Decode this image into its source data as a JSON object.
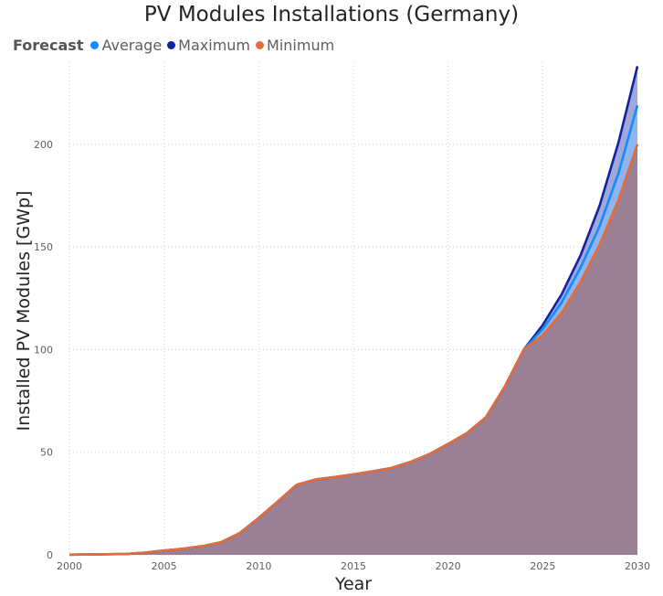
{
  "chart_data": {
    "type": "area",
    "title": "PV Modules Installations (Germany)",
    "xlabel": "Year",
    "ylabel": "Installed PV Modules [GWp]",
    "xlim": [
      2000,
      2030
    ],
    "ylim": [
      0,
      240
    ],
    "x_ticks": [
      2000,
      2005,
      2010,
      2015,
      2020,
      2025,
      2030
    ],
    "y_ticks": [
      0,
      50,
      100,
      150,
      200
    ],
    "grid": true,
    "legend": {
      "title": "Forecast",
      "position": "top-left",
      "items": [
        {
          "name": "Average",
          "color": "#118DFF"
        },
        {
          "name": "Maximum",
          "color": "#12239E"
        },
        {
          "name": "Minimum",
          "color": "#E66C37"
        }
      ]
    },
    "x": [
      2000,
      2001,
      2002,
      2003,
      2004,
      2005,
      2006,
      2007,
      2008,
      2009,
      2010,
      2011,
      2012,
      2013,
      2014,
      2015,
      2016,
      2017,
      2018,
      2019,
      2020,
      2021,
      2022,
      2023,
      2024,
      2025,
      2026,
      2027,
      2028,
      2029,
      2030
    ],
    "series": [
      {
        "name": "Maximum",
        "color": "#12239E",
        "fill": "#9FA8DA",
        "values": [
          0.1,
          0.2,
          0.3,
          0.4,
          1.1,
          2.1,
          3.0,
          4.2,
          6.1,
          10.6,
          18.0,
          25.9,
          34.1,
          36.7,
          37.9,
          39.2,
          40.7,
          42.3,
          45.2,
          49.0,
          54.0,
          59.3,
          67.0,
          82.0,
          100.0,
          112.0,
          127.0,
          146.0,
          170.0,
          201.0,
          238.0
        ]
      },
      {
        "name": "Average",
        "color": "#118DFF",
        "fill": "#8FB4F0",
        "values": [
          0.1,
          0.2,
          0.3,
          0.4,
          1.1,
          2.1,
          3.0,
          4.2,
          6.1,
          10.6,
          18.0,
          25.9,
          34.1,
          36.7,
          37.9,
          39.2,
          40.7,
          42.3,
          45.2,
          49.0,
          54.0,
          59.3,
          67.0,
          82.0,
          100.0,
          110.0,
          123.0,
          140.0,
          160.0,
          186.0,
          219.0
        ]
      },
      {
        "name": "Minimum",
        "color": "#E66C37",
        "fill": "#9B7F94",
        "values": [
          0.1,
          0.2,
          0.3,
          0.4,
          1.1,
          2.1,
          3.0,
          4.2,
          6.1,
          10.6,
          18.0,
          25.9,
          34.1,
          36.7,
          37.9,
          39.2,
          40.7,
          42.3,
          45.2,
          49.0,
          54.0,
          59.3,
          67.0,
          82.0,
          100.0,
          107.0,
          118.0,
          133.0,
          151.0,
          173.0,
          200.0
        ]
      }
    ]
  }
}
